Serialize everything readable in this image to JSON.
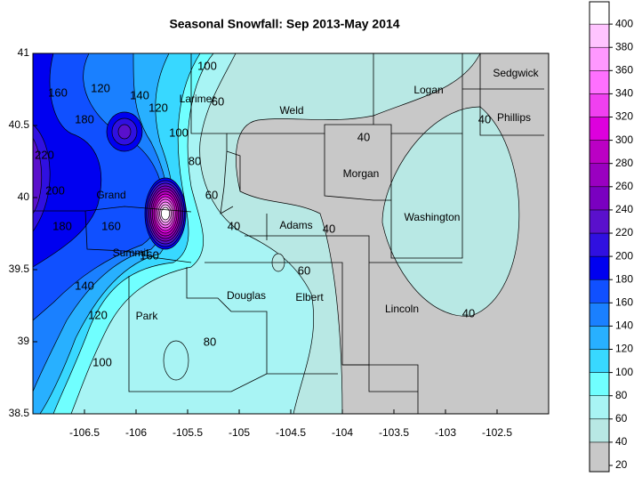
{
  "title": "Seasonal Snowfall: Sep 2013-May 2014",
  "map": {
    "xlim": [
      -107,
      -102
    ],
    "ylim": [
      38.5,
      41
    ],
    "xticks": [
      -106.5,
      -106,
      -105.5,
      -105,
      -104.5,
      -104,
      -103.5,
      -103,
      -102.5
    ],
    "yticks": [
      38.5,
      39,
      39.5,
      40,
      40.5,
      41
    ]
  },
  "counties": [
    "Sedgwick",
    "Logan",
    "Phillips",
    "Larimer",
    "Weld",
    "Morgan",
    "Grand",
    "Adams",
    "Washington",
    "Summit",
    "Douglas",
    "Elbert",
    "Park",
    "Lincoln"
  ],
  "contour_labels": [
    100,
    60,
    120,
    140,
    120,
    160,
    180,
    100,
    80,
    60,
    40,
    40,
    40,
    40,
    40,
    60,
    80,
    220,
    200,
    160,
    180,
    160,
    140,
    120,
    100
  ],
  "colorbar": {
    "ticks": [
      20,
      40,
      60,
      80,
      100,
      120,
      140,
      160,
      180,
      200,
      220,
      240,
      260,
      280,
      300,
      320,
      340,
      360,
      380,
      400
    ],
    "colors": [
      "#c8c8c8",
      "#b8e8e4",
      "#a8f4f4",
      "#70ffff",
      "#38d8ff",
      "#28b0ff",
      "#1a80ff",
      "#1050ff",
      "#0000f0",
      "#3010e0",
      "#5a10cc",
      "#7a00c0",
      "#9a00c0",
      "#bb00c4",
      "#dd00dd",
      "#f040f0",
      "#ff70ff",
      "#ff98ff",
      "#ffc4ff",
      "#ffffff"
    ]
  }
}
